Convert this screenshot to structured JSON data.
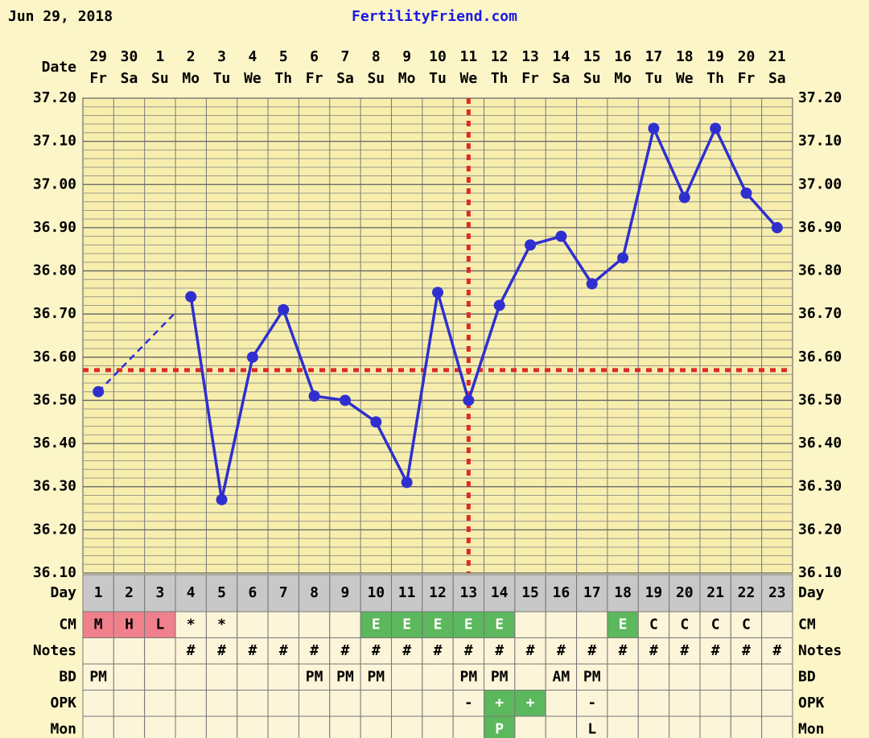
{
  "header": "Jun 29, 2018",
  "title": "FertilityFriend.com",
  "chart_data": {
    "type": "line",
    "date_label": "Date",
    "categories": [
      "29",
      "30",
      "1",
      "2",
      "3",
      "4",
      "5",
      "6",
      "7",
      "8",
      "9",
      "10",
      "11",
      "12",
      "13",
      "14",
      "15",
      "16",
      "17",
      "18",
      "19",
      "20",
      "21"
    ],
    "weekdays": [
      "Fr",
      "Sa",
      "Su",
      "Mo",
      "Tu",
      "We",
      "Th",
      "Fr",
      "Sa",
      "Su",
      "Mo",
      "Tu",
      "We",
      "Th",
      "Fr",
      "Sa",
      "Su",
      "Mo",
      "Tu",
      "We",
      "Th",
      "Fr",
      "Sa"
    ],
    "values": [
      36.52,
      null,
      null,
      36.74,
      36.27,
      36.6,
      36.71,
      36.51,
      36.5,
      36.45,
      36.31,
      36.75,
      36.5,
      36.72,
      36.86,
      36.88,
      36.77,
      36.83,
      37.13,
      36.97,
      37.13,
      36.98,
      36.9
    ],
    "color": "#2f2fd0",
    "ylim": [
      36.1,
      37.2
    ],
    "yticks": [
      {
        "value": 36.1,
        "label": "36.10"
      },
      {
        "value": 36.2,
        "label": "36.20"
      },
      {
        "value": 36.3,
        "label": "36.30"
      },
      {
        "value": 36.4,
        "label": "36.40"
      },
      {
        "value": 36.5,
        "label": "36.50"
      },
      {
        "value": 36.6,
        "label": "36.60"
      },
      {
        "value": 36.7,
        "label": "36.70"
      },
      {
        "value": 36.8,
        "label": "36.80"
      },
      {
        "value": 36.9,
        "label": "36.90"
      },
      {
        "value": 37.0,
        "label": "37.00"
      },
      {
        "value": 37.1,
        "label": "37.10"
      },
      {
        "value": 37.2,
        "label": "37.20"
      }
    ],
    "grid": true,
    "minor_grid": 0.02,
    "coverline": 36.57,
    "coverline_color": "#e02828",
    "ovulation_day": 13,
    "rows": [
      {
        "label": "Day",
        "cells": [
          1,
          2,
          3,
          4,
          5,
          6,
          7,
          8,
          9,
          10,
          11,
          12,
          13,
          14,
          15,
          16,
          17,
          18,
          19,
          20,
          21,
          22,
          23
        ]
      },
      {
        "label": "CM",
        "cells": [
          "M",
          "H",
          "L",
          "*",
          "*",
          null,
          null,
          null,
          null,
          "E",
          "E",
          "E",
          "E",
          "E",
          null,
          null,
          null,
          "E",
          "C",
          "C",
          "C",
          "C",
          null
        ],
        "highlight": {
          "M": "#f0808c",
          "H": "#f0808c",
          "L": "#f0808c",
          "E": "#5cb85c"
        }
      },
      {
        "label": "Notes",
        "cells": [
          null,
          null,
          null,
          "#",
          "#",
          "#",
          "#",
          "#",
          "#",
          "#",
          "#",
          "#",
          "#",
          "#",
          "#",
          "#",
          "#",
          "#",
          "#",
          "#",
          "#",
          "#",
          "#"
        ]
      },
      {
        "label": "BD",
        "cells": [
          "PM",
          null,
          null,
          null,
          null,
          null,
          null,
          "PM",
          "PM",
          "PM",
          null,
          null,
          "PM",
          "PM",
          null,
          "AM",
          "PM",
          null,
          null,
          null,
          null,
          null,
          null
        ]
      },
      {
        "label": "OPK",
        "cells": [
          null,
          null,
          null,
          null,
          null,
          null,
          null,
          null,
          null,
          null,
          null,
          null,
          "-",
          "+",
          "+",
          null,
          "-",
          null,
          null,
          null,
          null,
          null,
          null
        ],
        "highlight": {
          "+": "#5cb85c"
        }
      },
      {
        "label": "Mon",
        "cells": [
          null,
          null,
          null,
          null,
          null,
          null,
          null,
          null,
          null,
          null,
          null,
          null,
          null,
          "P",
          null,
          null,
          "L",
          null,
          null,
          null,
          null,
          null,
          null
        ],
        "highlight": {
          "P": "#5cb85c"
        }
      }
    ]
  }
}
